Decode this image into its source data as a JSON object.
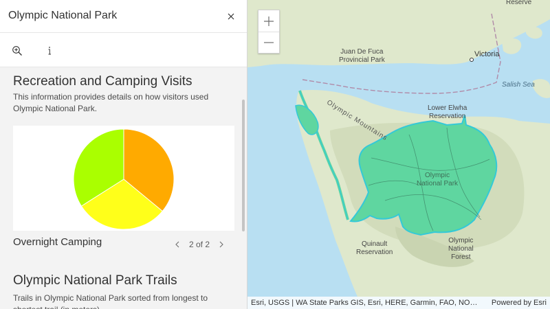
{
  "panel": {
    "title": "Olympic National Park",
    "close_icon": "close-icon",
    "tools": {
      "zoom_to_icon": "zoom-in-magnifier-icon",
      "info_icon": "info-icon"
    }
  },
  "sections": [
    {
      "title": "Recreation and Camping Visits",
      "description": "This information provides details on how visitors used Olympic National Park.",
      "chart_caption": "Overnight Camping",
      "pager": "2 of 2"
    },
    {
      "title": "Olympic National Park Trails",
      "description": "Trails in Olympic National Park sorted from longest to shortest trail (in meters)"
    }
  ],
  "chart_data": {
    "type": "pie",
    "title": "",
    "slices": [
      {
        "value": 36,
        "color": "#ffaa00"
      },
      {
        "value": 30,
        "color": "#ffff1a"
      },
      {
        "value": 34,
        "color": "#aaff00"
      }
    ]
  },
  "map": {
    "labels": {
      "reserve": "Reserve",
      "juan_de_fuca": "Juan De Fuca\nProvincial Park",
      "victoria": "Victoria",
      "salish_sea": "Salish Sea",
      "lower_elwha": "Lower Elwha\nReservation",
      "olympic_mountains": "Olympic Mountains",
      "park_name": "Olympic\nNational Park",
      "quinault": "Quinault\nReservation",
      "forest": "Olympic\nNational\nForest"
    },
    "zoom_in": "+",
    "zoom_out": "—",
    "attribution": "Esri, USGS | WA State Parks GIS, Esri, HERE, Garmin, FAO, NOAA, USGS, EPA, NPS",
    "powered_by": "Powered by Esri",
    "colors": {
      "water": "#b8dff2",
      "land": "#dfe8cc",
      "park": "#5fd6a0",
      "park_outline": "#33c9d8"
    }
  }
}
